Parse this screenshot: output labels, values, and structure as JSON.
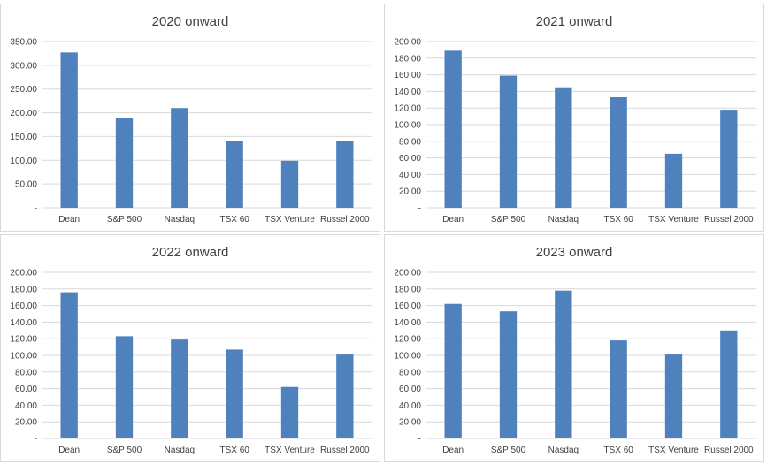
{
  "chart_data": [
    {
      "type": "bar",
      "title": "2020 onward",
      "categories": [
        "Dean",
        "S&P 500",
        "Nasdaq",
        "TSX 60",
        "TSX Venture",
        "Russel 2000"
      ],
      "values": [
        327,
        188,
        210,
        141,
        99,
        141
      ],
      "ylim": [
        0,
        350
      ],
      "yticks": [
        "-",
        "50.00",
        "100.00",
        "150.00",
        "200.00",
        "250.00",
        "300.00",
        "350.00"
      ],
      "ystep": 50,
      "color": "#4f81bd",
      "grid": true
    },
    {
      "type": "bar",
      "title": "2021 onward",
      "categories": [
        "Dean",
        "S&P 500",
        "Nasdaq",
        "TSX 60",
        "TSX Venture",
        "Russel 2000"
      ],
      "values": [
        189,
        159,
        145,
        133,
        65,
        118
      ],
      "ylim": [
        0,
        200
      ],
      "yticks": [
        "-",
        "20.00",
        "40.00",
        "60.00",
        "80.00",
        "100.00",
        "120.00",
        "140.00",
        "160.00",
        "180.00",
        "200.00"
      ],
      "ystep": 20,
      "color": "#4f81bd",
      "grid": true
    },
    {
      "type": "bar",
      "title": "2022 onward",
      "categories": [
        "Dean",
        "S&P 500",
        "Nasdaq",
        "TSX 60",
        "TSX Venture",
        "Russel 2000"
      ],
      "values": [
        176,
        123,
        119,
        107,
        62,
        101
      ],
      "ylim": [
        0,
        200
      ],
      "yticks": [
        "-",
        "20.00",
        "40.00",
        "60.00",
        "80.00",
        "100.00",
        "120.00",
        "140.00",
        "160.00",
        "180.00",
        "200.00"
      ],
      "ystep": 20,
      "color": "#4f81bd",
      "grid": true
    },
    {
      "type": "bar",
      "title": "2023 onward",
      "categories": [
        "Dean",
        "S&P 500",
        "Nasdaq",
        "TSX 60",
        "TSX Venture",
        "Russel 2000"
      ],
      "values": [
        162,
        153,
        178,
        118,
        101,
        130
      ],
      "ylim": [
        0,
        200
      ],
      "yticks": [
        "-",
        "20.00",
        "40.00",
        "60.00",
        "80.00",
        "100.00",
        "120.00",
        "140.00",
        "160.00",
        "180.00",
        "200.00"
      ],
      "ystep": 20,
      "color": "#4f81bd",
      "grid": true
    }
  ]
}
